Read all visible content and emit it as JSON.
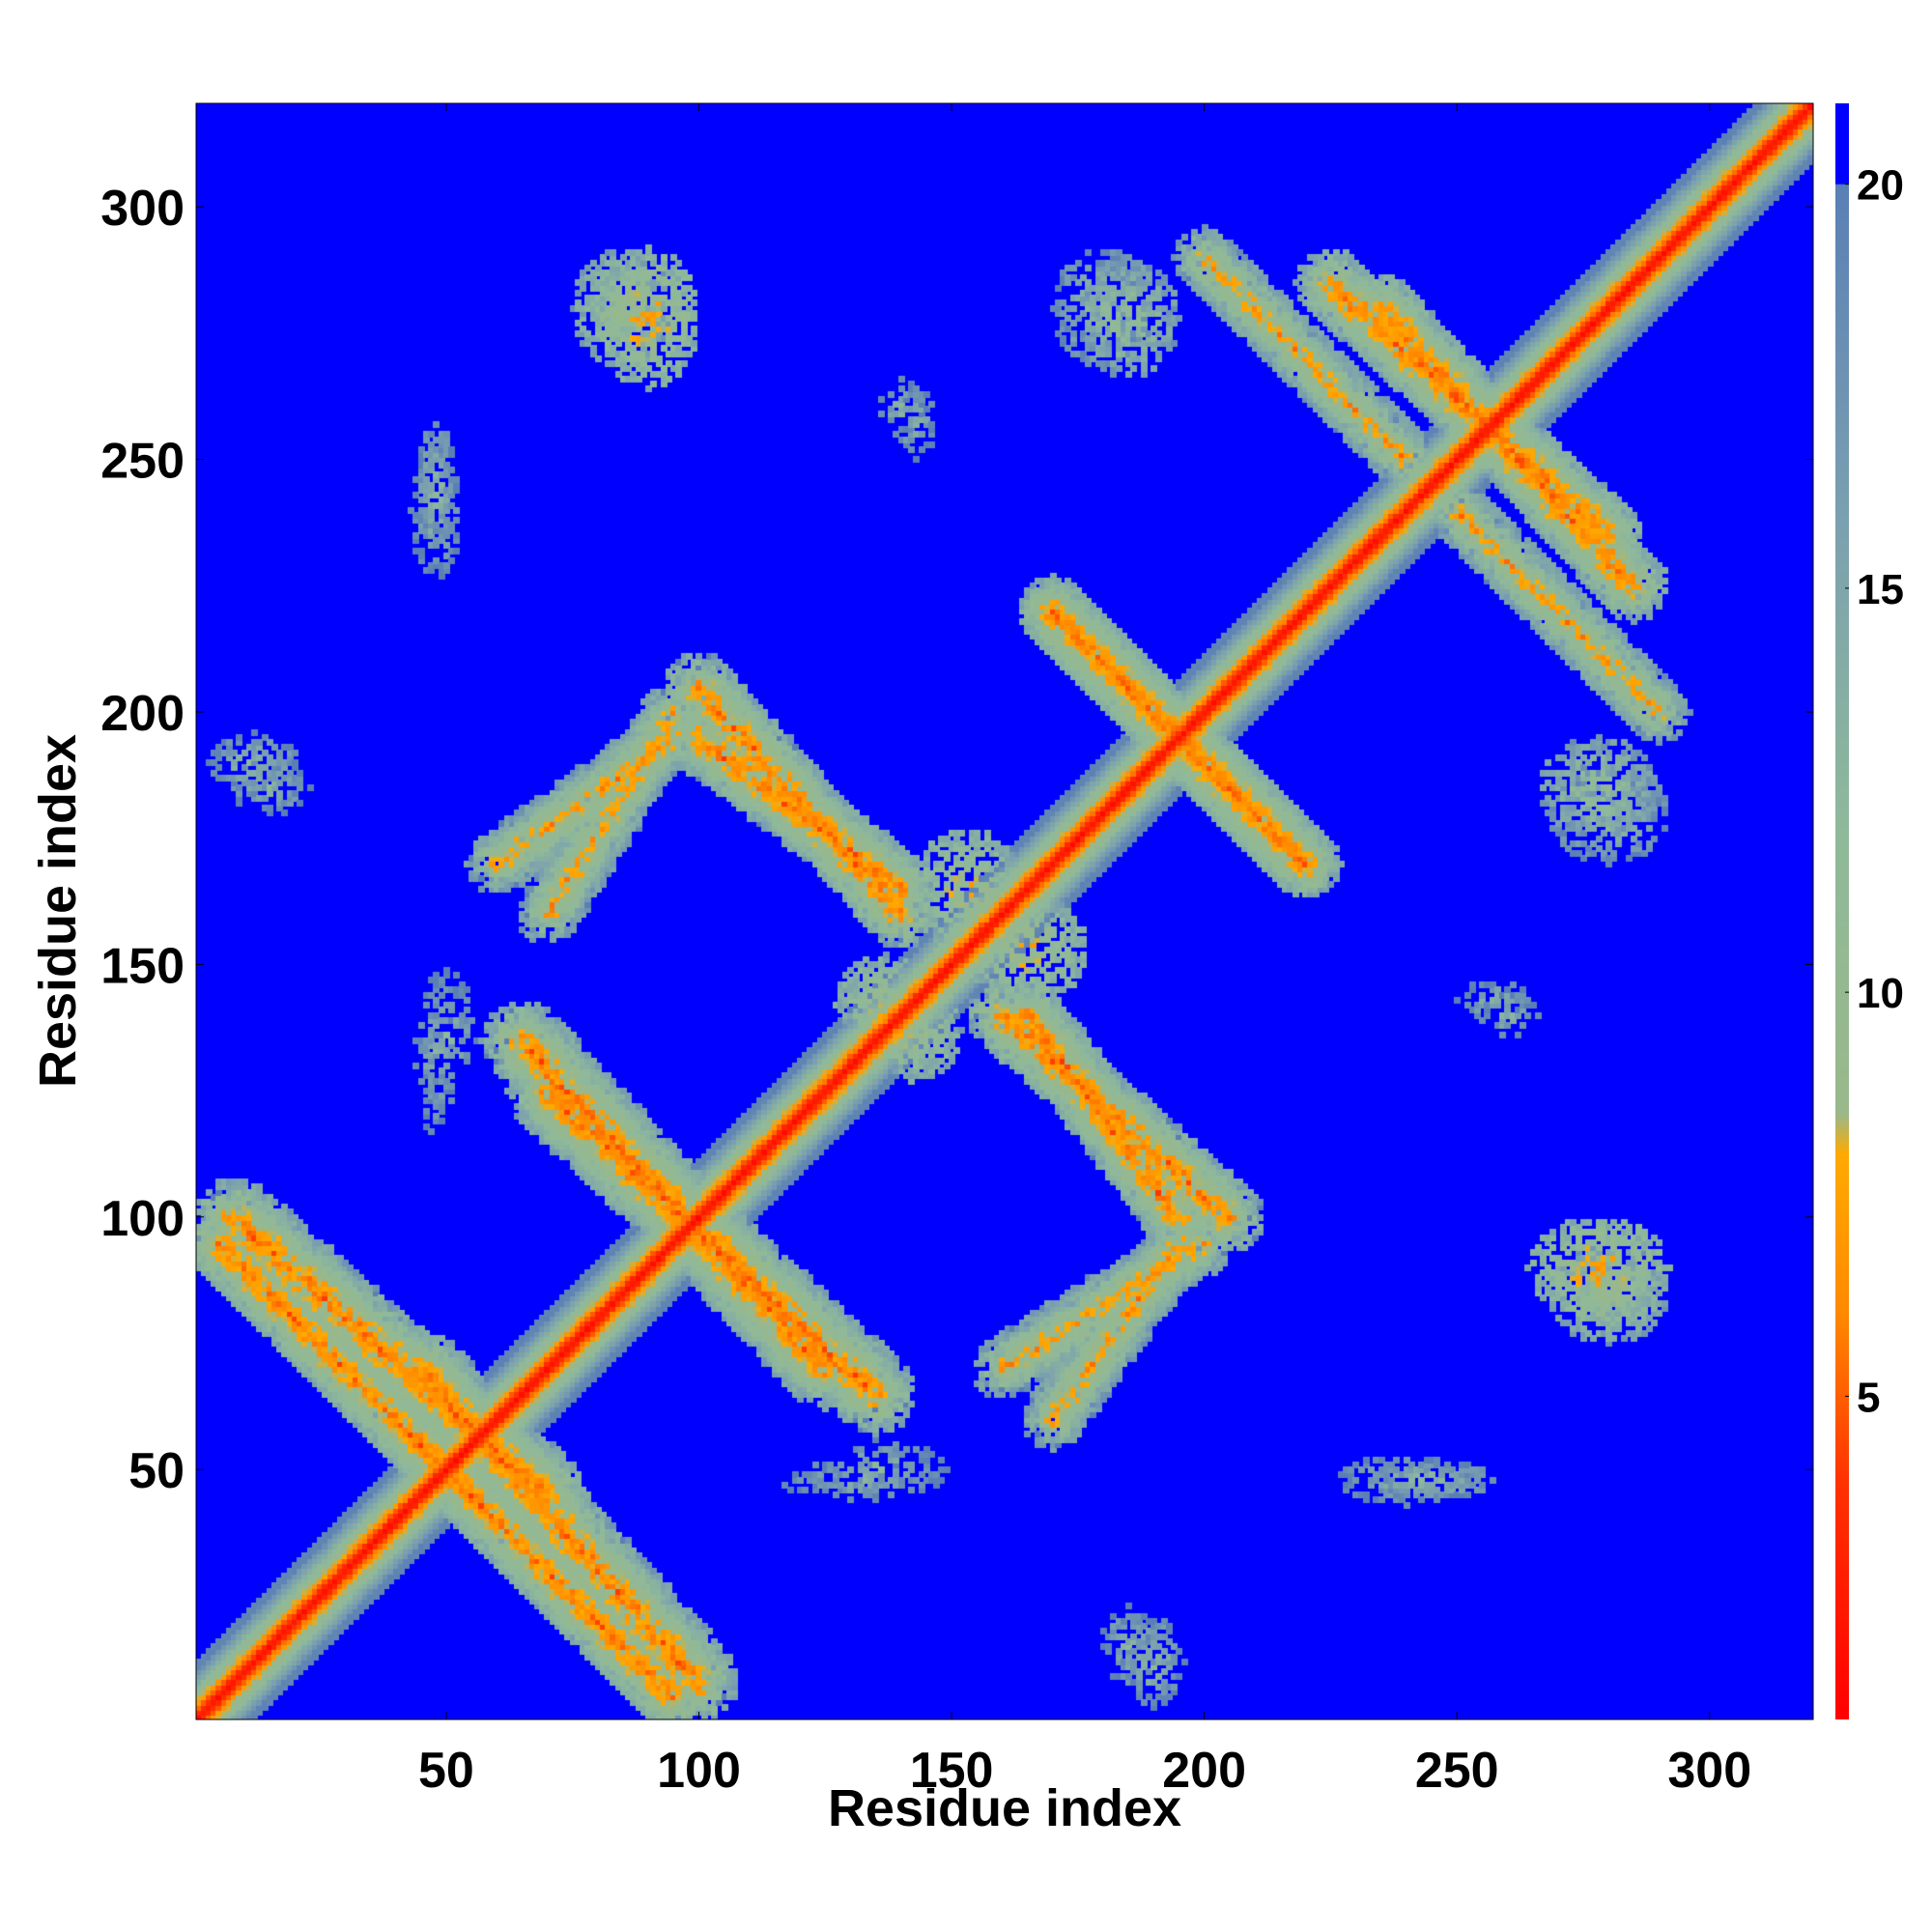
{
  "chart_data": {
    "type": "heatmap",
    "title": "",
    "xlabel": "Residue index",
    "ylabel": "Residue index",
    "xlim": [
      1,
      320
    ],
    "ylim": [
      1,
      320
    ],
    "x_ticks": [
      50,
      100,
      150,
      200,
      250,
      300
    ],
    "y_ticks": [
      50,
      100,
      150,
      200,
      250,
      300
    ],
    "x_tick_labels": [
      "50",
      "100",
      "150",
      "200",
      "250",
      "300"
    ],
    "y_tick_labels": [
      "50",
      "100",
      "150",
      "200",
      "250",
      "300"
    ],
    "grid": false,
    "symmetric": true,
    "background_value": 21,
    "colorbar": {
      "range": [
        1,
        21
      ],
      "ticks": [
        5,
        10,
        15,
        20
      ],
      "tick_labels": [
        "5",
        "10",
        "15",
        "20"
      ],
      "position": "right",
      "stops": [
        {
          "value": 1,
          "color": "#ff0000"
        },
        {
          "value": 4,
          "color": "#ff3300"
        },
        {
          "value": 6,
          "color": "#ff8800"
        },
        {
          "value": 8,
          "color": "#ffaa00"
        },
        {
          "value": 8.5,
          "color": "#9ab88a"
        },
        {
          "value": 12,
          "color": "#8fb99a"
        },
        {
          "value": 16,
          "color": "#7a9fb0"
        },
        {
          "value": 20,
          "color": "#5a7fb5"
        },
        {
          "value": 20.01,
          "color": "#0000ff"
        },
        {
          "value": 21,
          "color": "#0000ff"
        }
      ]
    },
    "diagonal": {
      "start": 1,
      "end": 320,
      "core_value": 2,
      "half_width_residues": 11
    },
    "contact_features": [
      {
        "kind": "antiparallel",
        "x": [
          5,
          55
        ],
        "y": [
          95,
          45
        ],
        "width": 7,
        "center_value": 6,
        "density": 0.85
      },
      {
        "kind": "antiparallel",
        "x": [
          45,
          100
        ],
        "y": [
          70,
          8
        ],
        "width": 8,
        "center_value": 6,
        "density": 0.8
      },
      {
        "kind": "antiparallel",
        "x": [
          70,
          135
        ],
        "y": [
          125,
          65
        ],
        "width": 8,
        "center_value": 6,
        "density": 0.8
      },
      {
        "kind": "antiparallel",
        "x": [
          160,
          205
        ],
        "y": [
          140,
          100
        ],
        "width": 7,
        "center_value": 6,
        "density": 0.75
      },
      {
        "kind": "antiparallel",
        "x": [
          170,
          220
        ],
        "y": [
          220,
          170
        ],
        "width": 7,
        "center_value": 6,
        "density": 0.8
      },
      {
        "kind": "antiparallel",
        "x": [
          225,
          280
        ],
        "y": [
          285,
          235
        ],
        "width": 7,
        "center_value": 6,
        "density": 0.8
      },
      {
        "kind": "antiparallel",
        "x": [
          250,
          290
        ],
        "y": [
          240,
          200
        ],
        "width": 6,
        "center_value": 7,
        "density": 0.75
      },
      {
        "kind": "antiparallel",
        "x": [
          100,
          140
        ],
        "y": [
          195,
          165
        ],
        "width": 7,
        "center_value": 6,
        "density": 0.75
      },
      {
        "kind": "antiparallel",
        "x": [
          60,
          95
        ],
        "y": [
          170,
          195
        ],
        "width": 6,
        "center_value": 7,
        "density": 0.7
      },
      {
        "kind": "antiparallel",
        "x": [
          160,
          200
        ],
        "y": [
          70,
          95
        ],
        "width": 6,
        "center_value": 7,
        "density": 0.7
      },
      {
        "kind": "blob",
        "x": 85,
        "y": 280,
        "rx": 10,
        "ry": 12,
        "center_value": 9,
        "density": 0.55
      },
      {
        "kind": "blob",
        "x": 180,
        "y": 280,
        "rx": 10,
        "ry": 12,
        "center_value": 12,
        "density": 0.45
      },
      {
        "kind": "blob",
        "x": 278,
        "y": 90,
        "rx": 14,
        "ry": 10,
        "center_value": 7,
        "density": 0.55
      },
      {
        "kind": "blob",
        "x": 278,
        "y": 185,
        "rx": 12,
        "ry": 10,
        "center_value": 10,
        "density": 0.5
      },
      {
        "kind": "blob",
        "x": 48,
        "y": 245,
        "rx": 4,
        "ry": 12,
        "center_value": 12,
        "density": 0.45
      },
      {
        "kind": "blob",
        "x": 12,
        "y": 190,
        "rx": 9,
        "ry": 6,
        "center_value": 12,
        "density": 0.45
      },
      {
        "kind": "blob",
        "x": 140,
        "y": 260,
        "rx": 5,
        "ry": 6,
        "center_value": 13,
        "density": 0.4
      },
      {
        "kind": "blob",
        "x": 185,
        "y": 15,
        "rx": 6,
        "ry": 8,
        "center_value": 13,
        "density": 0.4
      },
      {
        "kind": "blob",
        "x": 240,
        "y": 48,
        "rx": 14,
        "ry": 5,
        "center_value": 13,
        "density": 0.4
      },
      {
        "kind": "blob",
        "x": 130,
        "y": 48,
        "rx": 14,
        "ry": 4,
        "center_value": 13,
        "density": 0.35
      },
      {
        "kind": "blob",
        "x": 50,
        "y": 135,
        "rx": 6,
        "ry": 14,
        "center_value": 13,
        "density": 0.35
      },
      {
        "kind": "blob",
        "x": 257,
        "y": 143,
        "rx": 7,
        "ry": 4,
        "center_value": 13,
        "density": 0.4
      },
      {
        "kind": "blob",
        "x": 153,
        "y": 165,
        "rx": 12,
        "ry": 12,
        "center_value": 8,
        "density": 0.6
      },
      {
        "kind": "blob",
        "x": 142,
        "y": 137,
        "rx": 10,
        "ry": 10,
        "center_value": 8,
        "density": 0.6
      }
    ]
  }
}
